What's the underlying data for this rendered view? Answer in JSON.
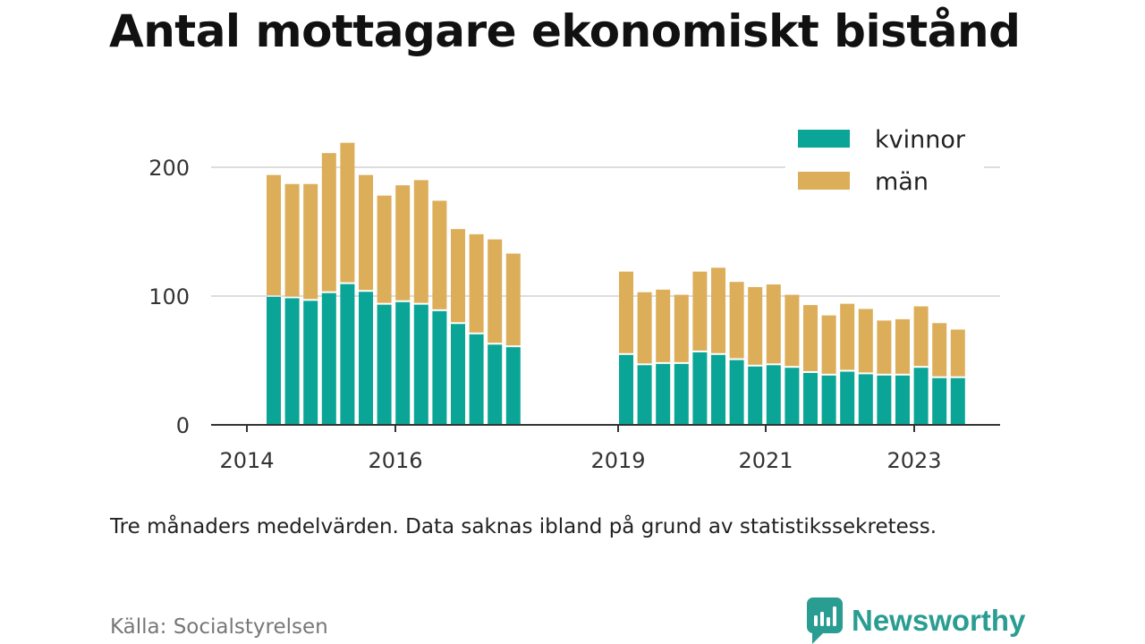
{
  "title": "Antal mottagare ekonomiskt bistånd",
  "note": "Tre månaders medelvärden. Data saknas ibland på grund av statistikssekretess.",
  "source": "Källa: Socialstyrelsen",
  "brand": "Newsworthy",
  "colors": {
    "kvinnor": "#0aa596",
    "man": "#dcae5a",
    "grid": "#dddddd",
    "axis": "#333333",
    "brand": "#2a9d92"
  },
  "chart_data": {
    "type": "bar",
    "stacked": true,
    "ylim": [
      0,
      200
    ],
    "yticks": [
      0,
      100,
      200
    ],
    "xticks": [
      "2014",
      "2016",
      "2019",
      "2021",
      "2023"
    ],
    "grid": true,
    "legend_position": "top-right",
    "series": [
      {
        "name": "kvinnor",
        "segments": [
          [
            100,
            99,
            97,
            103,
            110,
            104,
            94,
            96,
            94,
            89,
            79,
            71,
            63,
            61
          ],
          [
            55,
            47,
            48,
            48,
            57,
            55,
            51,
            46,
            47,
            45,
            41,
            39,
            42,
            40,
            39,
            39,
            45,
            37,
            37
          ]
        ]
      },
      {
        "name": "män",
        "segments": [
          [
            94,
            88,
            90,
            108,
            109,
            90,
            84,
            90,
            96,
            85,
            73,
            77,
            81,
            72
          ],
          [
            64,
            56,
            57,
            53,
            62,
            67,
            60,
            61,
            62,
            56,
            52,
            46,
            52,
            50,
            42,
            43,
            47,
            42,
            37
          ]
        ]
      }
    ]
  }
}
